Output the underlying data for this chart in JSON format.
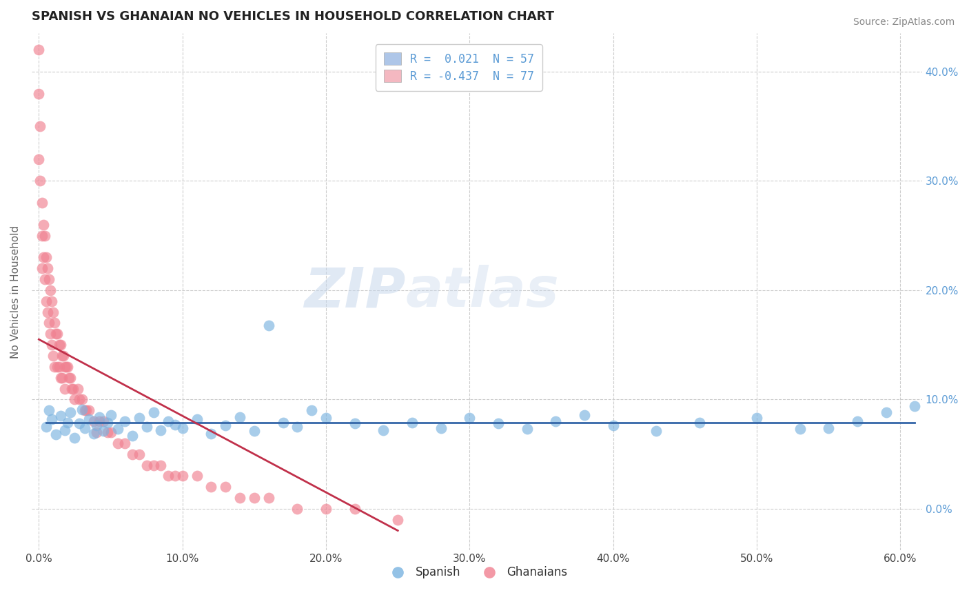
{
  "title": "SPANISH VS GHANAIAN NO VEHICLES IN HOUSEHOLD CORRELATION CHART",
  "source": "Source: ZipAtlas.com",
  "ylabel": "No Vehicles in Household",
  "watermark_zip": "ZIP",
  "watermark_atlas": "atlas",
  "legend_entries": [
    {
      "label": "R =  0.021  N = 57",
      "facecolor": "#aec6e8"
    },
    {
      "label": "R = -0.437  N = 77",
      "facecolor": "#f4b8c1"
    }
  ],
  "spanish_color": "#7ab3e0",
  "ghanaian_color": "#f08090",
  "spanish_line_color": "#3466a8",
  "ghanaian_line_color": "#c0304a",
  "background_color": "#ffffff",
  "grid_color": "#cccccc",
  "xlim": [
    -0.005,
    0.615
  ],
  "ylim": [
    -0.038,
    0.435
  ],
  "xticks": [
    0.0,
    0.1,
    0.2,
    0.3,
    0.4,
    0.5,
    0.6
  ],
  "yticks": [
    0.0,
    0.1,
    0.2,
    0.3,
    0.4
  ],
  "ytick_labels_right": [
    "0.0%",
    "10.0%",
    "20.0%",
    "30.0%",
    "40.0%"
  ],
  "tick_color": "#5b9bd5",
  "spanish_x": [
    0.005,
    0.007,
    0.009,
    0.012,
    0.015,
    0.018,
    0.02,
    0.022,
    0.025,
    0.028,
    0.03,
    0.032,
    0.035,
    0.038,
    0.04,
    0.042,
    0.045,
    0.048,
    0.05,
    0.055,
    0.06,
    0.065,
    0.07,
    0.075,
    0.08,
    0.085,
    0.09,
    0.095,
    0.1,
    0.11,
    0.12,
    0.13,
    0.14,
    0.15,
    0.16,
    0.17,
    0.18,
    0.19,
    0.2,
    0.22,
    0.24,
    0.26,
    0.28,
    0.3,
    0.32,
    0.34,
    0.36,
    0.38,
    0.4,
    0.43,
    0.46,
    0.5,
    0.53,
    0.55,
    0.57,
    0.59,
    0.61
  ],
  "spanish_y": [
    0.075,
    0.09,
    0.082,
    0.068,
    0.085,
    0.072,
    0.079,
    0.088,
    0.065,
    0.078,
    0.091,
    0.074,
    0.082,
    0.069,
    0.076,
    0.084,
    0.071,
    0.079,
    0.086,
    0.073,
    0.08,
    0.067,
    0.083,
    0.075,
    0.088,
    0.072,
    0.08,
    0.077,
    0.074,
    0.082,
    0.069,
    0.076,
    0.084,
    0.071,
    0.168,
    0.079,
    0.075,
    0.09,
    0.083,
    0.078,
    0.072,
    0.079,
    0.074,
    0.083,
    0.078,
    0.073,
    0.08,
    0.086,
    0.076,
    0.071,
    0.079,
    0.083,
    0.073,
    0.074,
    0.08,
    0.088,
    0.094
  ],
  "ghanaian_x": [
    0.0,
    0.0,
    0.0,
    0.001,
    0.001,
    0.002,
    0.002,
    0.002,
    0.003,
    0.003,
    0.004,
    0.004,
    0.005,
    0.005,
    0.006,
    0.006,
    0.007,
    0.007,
    0.008,
    0.008,
    0.009,
    0.009,
    0.01,
    0.01,
    0.011,
    0.011,
    0.012,
    0.013,
    0.013,
    0.014,
    0.014,
    0.015,
    0.015,
    0.016,
    0.016,
    0.017,
    0.018,
    0.018,
    0.019,
    0.02,
    0.021,
    0.022,
    0.023,
    0.024,
    0.025,
    0.027,
    0.028,
    0.03,
    0.032,
    0.033,
    0.035,
    0.038,
    0.04,
    0.042,
    0.045,
    0.048,
    0.05,
    0.055,
    0.06,
    0.065,
    0.07,
    0.075,
    0.08,
    0.085,
    0.09,
    0.095,
    0.1,
    0.11,
    0.12,
    0.13,
    0.14,
    0.15,
    0.16,
    0.18,
    0.2,
    0.22,
    0.25
  ],
  "ghanaian_y": [
    0.42,
    0.38,
    0.32,
    0.35,
    0.3,
    0.28,
    0.25,
    0.22,
    0.26,
    0.23,
    0.25,
    0.21,
    0.23,
    0.19,
    0.22,
    0.18,
    0.21,
    0.17,
    0.2,
    0.16,
    0.19,
    0.15,
    0.18,
    0.14,
    0.17,
    0.13,
    0.16,
    0.16,
    0.13,
    0.15,
    0.13,
    0.15,
    0.12,
    0.14,
    0.12,
    0.14,
    0.13,
    0.11,
    0.13,
    0.13,
    0.12,
    0.12,
    0.11,
    0.11,
    0.1,
    0.11,
    0.1,
    0.1,
    0.09,
    0.09,
    0.09,
    0.08,
    0.07,
    0.08,
    0.08,
    0.07,
    0.07,
    0.06,
    0.06,
    0.05,
    0.05,
    0.04,
    0.04,
    0.04,
    0.03,
    0.03,
    0.03,
    0.03,
    0.02,
    0.02,
    0.01,
    0.01,
    0.01,
    0.0,
    0.0,
    0.0,
    -0.01
  ],
  "ghanaian_line_x0": 0.0,
  "ghanaian_line_y0": 0.155,
  "ghanaian_line_x1": 0.25,
  "ghanaian_line_y1": -0.02,
  "spanish_line_y": 0.079
}
